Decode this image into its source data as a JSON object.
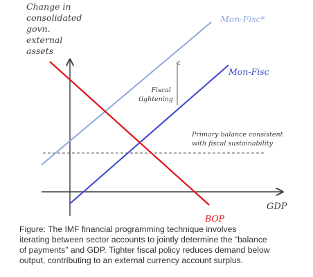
{
  "diagram": {
    "y_axis_label_lines": [
      "Change in",
      "consolidated",
      "govn.",
      "external",
      "assets"
    ],
    "x_axis_label": "GDP",
    "curves": {
      "mon_fisc_star": {
        "label": "Mon-Fisc*",
        "color": "#8fa8dc"
      },
      "mon_fisc": {
        "label": "Mon-Fisc",
        "color": "#3b46c8"
      },
      "bop": {
        "label": "BOP",
        "color": "#e0141c"
      }
    },
    "annotations": {
      "fiscal_tightening_lines": [
        "Fiscal",
        "tightening"
      ],
      "primary_balance_lines": [
        "Primary balance consistent",
        "with fiscal sustainability"
      ]
    },
    "colors": {
      "axis": "#3a3a3a",
      "dashed_line": "#555555",
      "text": "#3a3a3a"
    }
  },
  "caption_lines": [
    "Figure: The IMF financial programming technique involves",
    "iterating between sector accounts to jointly determine the “balance",
    "of payments” and GDP. Tighter fiscal policy reduces demand below",
    "output, contributing to an external currency account surplus."
  ]
}
